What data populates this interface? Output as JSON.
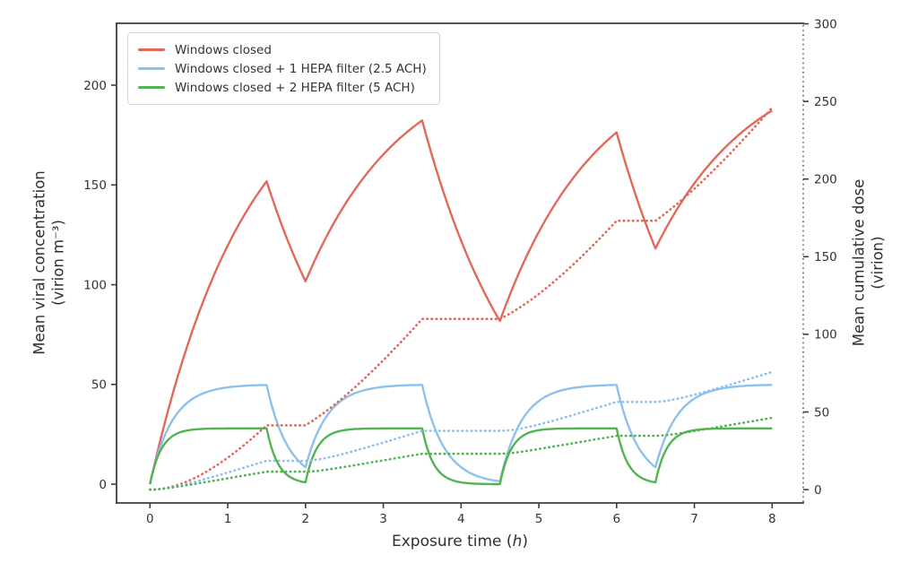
{
  "chart_data": {
    "type": "line",
    "title": "",
    "xlabel": {
      "prefix": "Exposure time (",
      "var": "h",
      "suffix": ")"
    },
    "x_ticks": [
      0,
      1,
      2,
      3,
      4,
      5,
      6,
      7,
      8
    ],
    "xlim": [
      -0.43,
      8.4
    ],
    "time_range": [
      0,
      8
    ],
    "left_axis": {
      "label_line1": "Mean viral concentration",
      "label_line2": "(virion m⁻³)",
      "ticks": [
        0,
        50,
        100,
        150,
        200
      ],
      "lim": [
        -9.4,
        231
      ]
    },
    "right_axis": {
      "label_line1": "Mean cumulative dose",
      "label_line2": "(virion)",
      "ticks": [
        0,
        50,
        100,
        150,
        200,
        250,
        300
      ],
      "lim": [
        -8.6,
        300.3
      ]
    },
    "occupancy_breaks": [
      [
        1.5,
        2.0
      ],
      [
        3.5,
        4.5
      ],
      [
        6.0,
        6.5
      ]
    ],
    "dose_factor": 0.305,
    "series": [
      {
        "name": "Windows closed",
        "kind": "concentration",
        "axis": "left",
        "style": "solid",
        "color": "#e0695a",
        "steady_state": 217,
        "removal_rate": 0.8,
        "key_points": [
          [
            0,
            0
          ],
          [
            1.5,
            152
          ],
          [
            2,
            102
          ],
          [
            3.5,
            182
          ],
          [
            4.5,
            82
          ],
          [
            6,
            176
          ],
          [
            6.5,
            118
          ],
          [
            8,
            187
          ]
        ]
      },
      {
        "name": "Windows closed + 1 HEPA filter (2.5 ACH)",
        "kind": "concentration",
        "axis": "left",
        "style": "solid",
        "color": "#8dc1ec",
        "steady_state": 50,
        "removal_rate": 3.5,
        "key_points": [
          [
            0,
            0
          ],
          [
            1.5,
            50
          ],
          [
            2,
            9
          ],
          [
            3.5,
            50
          ],
          [
            4.5,
            1.5
          ],
          [
            6,
            50
          ],
          [
            6.5,
            9
          ],
          [
            8,
            50
          ]
        ]
      },
      {
        "name": "Windows closed + 2 HEPA filter (5 ACH)",
        "kind": "concentration",
        "axis": "left",
        "style": "solid",
        "color": "#53b353",
        "steady_state": 28,
        "removal_rate": 6.7,
        "key_points": [
          [
            0,
            0
          ],
          [
            1.5,
            28
          ],
          [
            2,
            1
          ],
          [
            3.5,
            28
          ],
          [
            4.5,
            0
          ],
          [
            6,
            28
          ],
          [
            6.5,
            1
          ],
          [
            8,
            28
          ]
        ]
      },
      {
        "name": "Windows closed (cumulative dose)",
        "kind": "dose",
        "axis": "right",
        "style": "dotted",
        "color": "#e0695a",
        "source": 0,
        "key_points": [
          [
            0,
            0
          ],
          [
            1.5,
            42
          ],
          [
            2,
            42
          ],
          [
            3.5,
            111
          ],
          [
            4.5,
            111
          ],
          [
            6,
            174
          ],
          [
            6.5,
            174
          ],
          [
            8,
            245
          ]
        ]
      },
      {
        "name": "Windows closed + 1 HEPA filter (cumulative dose)",
        "kind": "dose",
        "axis": "right",
        "style": "dotted",
        "color": "#8dc1ec",
        "source": 1,
        "key_points": [
          [
            0,
            0
          ],
          [
            1.5,
            19
          ],
          [
            2,
            19
          ],
          [
            3.5,
            38
          ],
          [
            4.5,
            38
          ],
          [
            6,
            57
          ],
          [
            6.5,
            57
          ],
          [
            8,
            76
          ]
        ]
      },
      {
        "name": "Windows closed + 2 HEPA filter (cumulative dose)",
        "kind": "dose",
        "axis": "right",
        "style": "dotted",
        "color": "#53b353",
        "source": 2,
        "key_points": [
          [
            0,
            0
          ],
          [
            1.5,
            11.5
          ],
          [
            2,
            11.5
          ],
          [
            3.5,
            23
          ],
          [
            4.5,
            23
          ],
          [
            6,
            35
          ],
          [
            6.5,
            35
          ],
          [
            8,
            46
          ]
        ]
      }
    ]
  },
  "legend": {
    "items": [
      {
        "label": "Windows closed"
      },
      {
        "label": "Windows closed + 1 HEPA filter (2.5 ACH)"
      },
      {
        "label": "Windows closed + 2 HEPA filter (5 ACH)"
      }
    ]
  },
  "colors": {
    "spine": "#3d3d3d",
    "right_spine": "#707070",
    "tick_text": "#333333"
  }
}
